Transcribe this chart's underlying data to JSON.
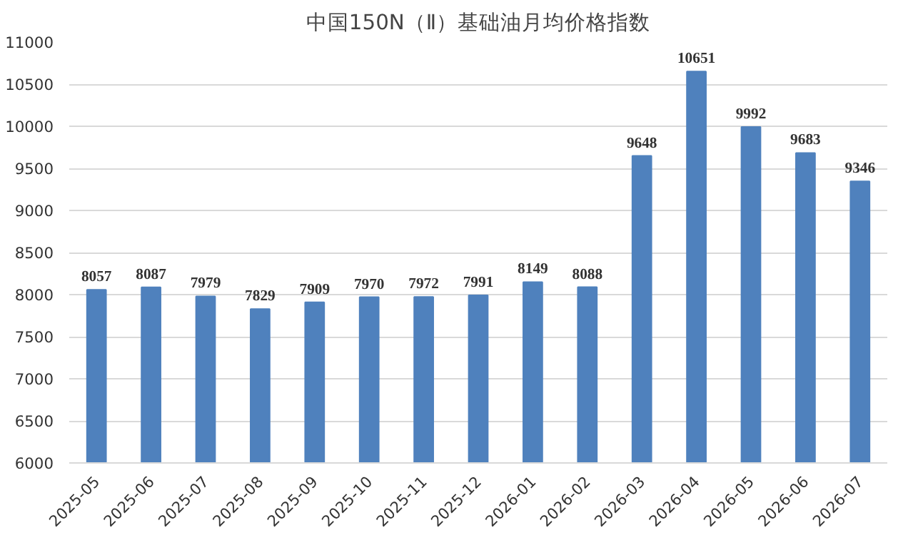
{
  "chart_data": {
    "type": "bar",
    "title": "中国150N（Ⅱ）基础油月均价格指数",
    "categories": [
      "2025-05",
      "2025-06",
      "2025-07",
      "2025-08",
      "2025-09",
      "2025-10",
      "2025-11",
      "2025-12",
      "2026-01",
      "2026-02",
      "2026-03",
      "2026-04",
      "2026-05",
      "2026-06",
      "2026-07"
    ],
    "values": [
      8057,
      8087,
      7979,
      7829,
      7909,
      7970,
      7972,
      7991,
      8149,
      8088,
      9648,
      10651,
      9992,
      9683,
      9346
    ],
    "color": "#4f81bd",
    "ylim": [
      6000,
      11000
    ],
    "yticks": [
      6000,
      6500,
      7000,
      7500,
      8000,
      8500,
      9000,
      9500,
      10000,
      10500,
      11000
    ],
    "grid": "y",
    "data_labels": true
  }
}
